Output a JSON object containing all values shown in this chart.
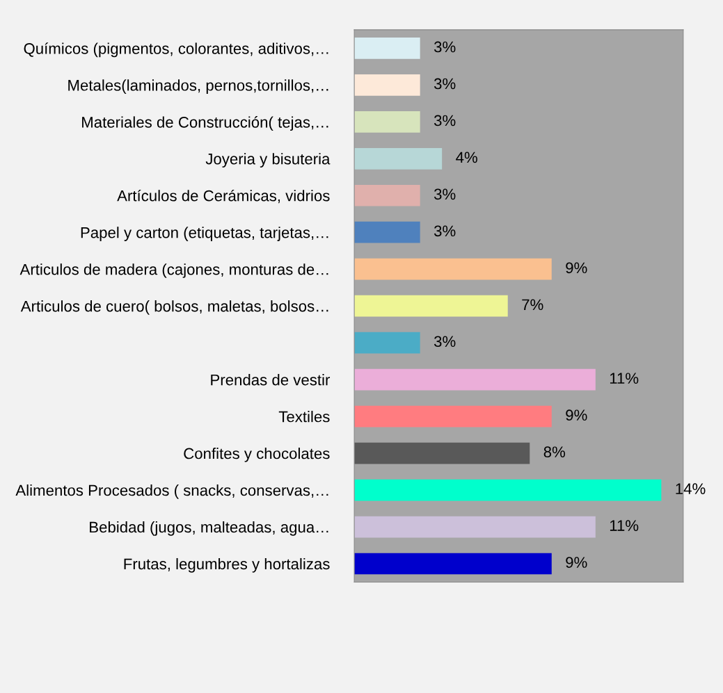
{
  "chart_data": {
    "type": "bar",
    "orientation": "horizontal",
    "categories": [
      "Químicos (pigmentos, colorantes, aditivos,…",
      "Metales(laminados, pernos,tornillos,…",
      "Materiales de Construcción( tejas,…",
      "Joyeria y bisuteria",
      "Artículos de Cerámicas, vidrios",
      "Papel y carton (etiquetas, tarjetas,…",
      "Articulos de madera (cajones, monturas de…",
      "Articulos de cuero( bolsos, maletas, bolsos…",
      null,
      "Prendas de vestir",
      "Textiles",
      "Confites y chocolates",
      "Alimentos Procesados ( snacks, conservas,…",
      "Bebidad (jugos, malteadas, agua…",
      "Frutas, legumbres y hortalizas"
    ],
    "values": [
      3,
      3,
      3,
      4,
      3,
      3,
      9,
      7,
      3,
      11,
      9,
      8,
      14,
      11,
      9
    ],
    "value_labels": [
      "3%",
      "3%",
      "3%",
      "4%",
      "3%",
      "3%",
      "9%",
      "7%",
      "3%",
      "11%",
      "9%",
      "8%",
      "14%",
      "11%",
      "9%"
    ],
    "colors": [
      "#daeef3",
      "#fde9d9",
      "#d7e4bc",
      "#b7d7d7",
      "#e0b0ac",
      "#4f81bd",
      "#fac090",
      "#eef595",
      "#4bacc6",
      "#ebaed9",
      "#ff7c80",
      "#595959",
      "#00ffcc",
      "#ccc0da",
      "#0000cc"
    ],
    "xlim": [
      0,
      15
    ],
    "tick_labels": "y",
    "grid": false
  }
}
